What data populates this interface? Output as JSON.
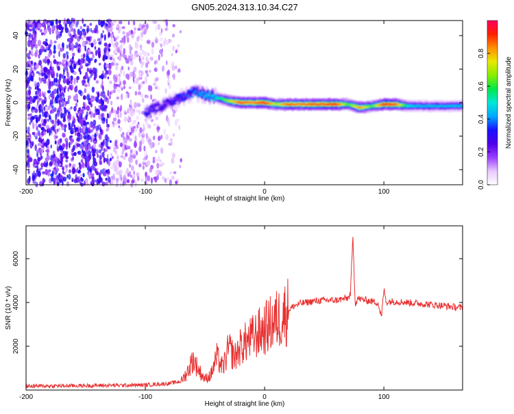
{
  "title": "GN05.2024.313.10.34.C27",
  "chart_data": [
    {
      "type": "heatmap",
      "xlabel": "Height of straight line (km)",
      "ylabel": "Frequency (Hz)",
      "xlim": [
        -200,
        166
      ],
      "ylim": [
        -49,
        49
      ],
      "xticks": [
        -200,
        -100,
        0,
        100
      ],
      "yticks": [
        -40,
        -20,
        0,
        20,
        40
      ],
      "colorbar": {
        "label": "Normalized spectral amplitude",
        "range": [
          0,
          1
        ],
        "ticks": [
          0.0,
          0.2,
          0.4,
          0.6,
          0.8
        ],
        "colors": [
          "#ffffff",
          "#e8c8ff",
          "#9a3cff",
          "#4f00e8",
          "#1a10ff",
          "#00a8ff",
          "#00e8d8",
          "#00e84a",
          "#8aee00",
          "#e8e800",
          "#ff9000",
          "#ff2000",
          "#ff0060"
        ]
      },
      "noise_region_x": [
        -200,
        -70
      ],
      "trace": [
        {
          "x": -100,
          "freq": -6,
          "amp": 0.35
        },
        {
          "x": -90,
          "freq": -3,
          "amp": 0.28
        },
        {
          "x": -80,
          "freq": 0,
          "amp": 0.3
        },
        {
          "x": -70,
          "freq": 3,
          "amp": 0.35
        },
        {
          "x": -60,
          "freq": 6,
          "amp": 0.4
        },
        {
          "x": -50,
          "freq": 5,
          "amp": 0.45
        },
        {
          "x": -40,
          "freq": 3,
          "amp": 0.5
        },
        {
          "x": -30,
          "freq": 1,
          "amp": 0.7
        },
        {
          "x": -20,
          "freq": 0,
          "amp": 0.9
        },
        {
          "x": -10,
          "freq": 0,
          "amp": 0.85
        },
        {
          "x": 0,
          "freq": 0,
          "amp": 0.95
        },
        {
          "x": 10,
          "freq": -1,
          "amp": 0.7
        },
        {
          "x": 20,
          "freq": -1,
          "amp": 0.9
        },
        {
          "x": 30,
          "freq": -1,
          "amp": 0.85
        },
        {
          "x": 40,
          "freq": -1,
          "amp": 0.9
        },
        {
          "x": 50,
          "freq": -1,
          "amp": 0.9
        },
        {
          "x": 60,
          "freq": -1,
          "amp": 0.95
        },
        {
          "x": 70,
          "freq": -1,
          "amp": 0.6
        },
        {
          "x": 80,
          "freq": -3,
          "amp": 0.85
        },
        {
          "x": 90,
          "freq": -2,
          "amp": 0.6
        },
        {
          "x": 100,
          "freq": -1,
          "amp": 0.95
        },
        {
          "x": 110,
          "freq": -1,
          "amp": 0.9
        },
        {
          "x": 120,
          "freq": -2,
          "amp": 0.5
        },
        {
          "x": 130,
          "freq": -2,
          "amp": 0.45
        },
        {
          "x": 140,
          "freq": -2,
          "amp": 0.45
        },
        {
          "x": 150,
          "freq": -2,
          "amp": 0.45
        },
        {
          "x": 166,
          "freq": -2,
          "amp": 0.45
        }
      ]
    },
    {
      "type": "line",
      "xlabel": "Height of straight line (km)",
      "ylabel": "SNR (10 * v/v)",
      "xlim": [
        -200,
        166
      ],
      "ylim": [
        0,
        7500
      ],
      "xticks": [
        -200,
        -100,
        0,
        100
      ],
      "yticks": [
        2000,
        4000,
        6000
      ],
      "series": [
        {
          "color": "#e83030",
          "x": [
            -200,
            -150,
            -100,
            -80,
            -70,
            -65,
            -60,
            -55,
            -50,
            -45,
            -40,
            -35,
            -30,
            -25,
            -20,
            -15,
            -10,
            -5,
            0,
            5,
            10,
            15,
            20,
            25,
            30,
            40,
            50,
            60,
            65,
            70,
            72,
            74,
            76,
            78,
            80,
            90,
            95,
            98,
            100,
            102,
            105,
            110,
            120,
            130,
            140,
            150,
            166
          ],
          "y": [
            180,
            200,
            230,
            300,
            400,
            800,
            1400,
            900,
            500,
            700,
            1500,
            1000,
            1900,
            1500,
            2000,
            2200,
            2400,
            2600,
            2800,
            3000,
            3200,
            3400,
            3650,
            3850,
            3950,
            4050,
            4100,
            4100,
            4150,
            4200,
            4400,
            7000,
            3900,
            4200,
            4150,
            4050,
            4000,
            3300,
            4600,
            4000,
            4050,
            4050,
            4000,
            3950,
            3900,
            3850,
            3750
          ]
        }
      ]
    }
  ]
}
